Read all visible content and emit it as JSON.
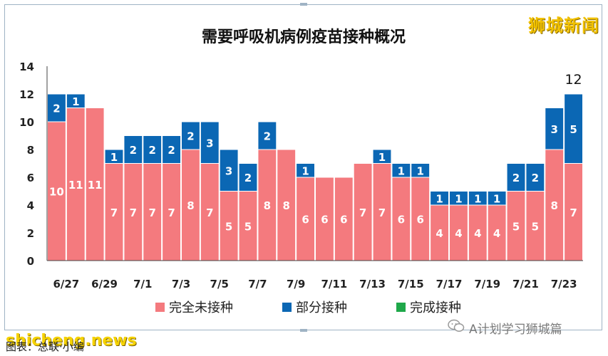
{
  "brand": "狮城新闻",
  "watermark": "shicheng.news",
  "wechat_account": "A计划学习狮城篇",
  "caption": "图表：总联·小编",
  "chart_data": {
    "type": "bar",
    "stacked": true,
    "title": "需要呼吸机病例疫苗接种概况",
    "categories": [
      "6/27",
      "6/28",
      "6/29",
      "6/30",
      "7/1",
      "7/2",
      "7/3",
      "7/4",
      "7/5",
      "7/6",
      "7/7",
      "7/8",
      "7/9",
      "7/10",
      "7/11",
      "7/12",
      "7/13",
      "7/14",
      "7/15",
      "7/16",
      "7/17",
      "7/18",
      "7/19",
      "7/20",
      "7/21",
      "7/22",
      "7/23",
      "7/24"
    ],
    "tick_labels": [
      "6/27",
      "6/29",
      "7/1",
      "7/3",
      "7/5",
      "7/7",
      "7/9",
      "7/11",
      "7/13",
      "7/15",
      "7/17",
      "7/19",
      "7/21",
      "7/23"
    ],
    "series": [
      {
        "name": "完全未接种",
        "color": "#f47a7e",
        "values": [
          10,
          11,
          11,
          7,
          7,
          7,
          7,
          8,
          7,
          5,
          5,
          8,
          8,
          6,
          6,
          6,
          7,
          7,
          6,
          6,
          4,
          4,
          4,
          4,
          5,
          5,
          8,
          7
        ]
      },
      {
        "name": "部分接种",
        "color": "#0b67b4",
        "values": [
          2,
          1,
          0,
          1,
          2,
          2,
          2,
          2,
          3,
          3,
          2,
          2,
          0,
          1,
          0,
          0,
          0,
          1,
          1,
          1,
          1,
          1,
          1,
          1,
          2,
          2,
          3,
          5
        ]
      },
      {
        "name": "完成接种",
        "color": "#1fa84a",
        "values": [
          0,
          0,
          0,
          0,
          0,
          0,
          0,
          0,
          0,
          0,
          0,
          0,
          0,
          0,
          0,
          0,
          0,
          0,
          0,
          0,
          0,
          0,
          0,
          0,
          0,
          0,
          0,
          0
        ]
      }
    ],
    "yticks": [
      0,
      2,
      4,
      6,
      8,
      10,
      12,
      14
    ],
    "ylim": [
      0,
      14
    ],
    "annotation": {
      "label": "12",
      "category": "7/24"
    },
    "legend_position": "bottom",
    "grid": false
  }
}
